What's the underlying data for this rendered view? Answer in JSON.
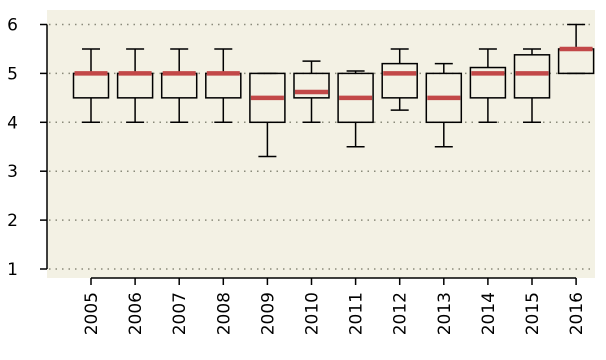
{
  "chart_data": {
    "type": "boxplot",
    "title": "",
    "xlabel": "",
    "ylabel": "",
    "ylim": [
      1,
      6
    ],
    "yticks": [
      1,
      2,
      3,
      4,
      5,
      6
    ],
    "grid": "horizontal dotted",
    "categories": [
      "2005",
      "2006",
      "2007",
      "2008",
      "2009",
      "2010",
      "2011",
      "2012",
      "2013",
      "2014",
      "2015",
      "2016"
    ],
    "boxes": [
      {
        "whisker_low": 4.0,
        "q1": 4.5,
        "median": 5.0,
        "q3": 5.0,
        "whisker_high": 5.5
      },
      {
        "whisker_low": 4.0,
        "q1": 4.5,
        "median": 5.0,
        "q3": 5.0,
        "whisker_high": 5.5
      },
      {
        "whisker_low": 4.0,
        "q1": 4.5,
        "median": 5.0,
        "q3": 5.0,
        "whisker_high": 5.5
      },
      {
        "whisker_low": 4.0,
        "q1": 4.5,
        "median": 5.0,
        "q3": 5.0,
        "whisker_high": 5.5
      },
      {
        "whisker_low": 3.3,
        "q1": 4.0,
        "median": 4.5,
        "q3": 5.0,
        "whisker_high": 5.0
      },
      {
        "whisker_low": 4.0,
        "q1": 4.5,
        "median": 4.62,
        "q3": 5.0,
        "whisker_high": 5.25
      },
      {
        "whisker_low": 3.5,
        "q1": 4.0,
        "median": 4.5,
        "q3": 5.0,
        "whisker_high": 5.05
      },
      {
        "whisker_low": 4.25,
        "q1": 4.5,
        "median": 5.0,
        "q3": 5.2,
        "whisker_high": 5.5
      },
      {
        "whisker_low": 3.5,
        "q1": 4.0,
        "median": 4.5,
        "q3": 5.0,
        "whisker_high": 5.2
      },
      {
        "whisker_low": 4.0,
        "q1": 4.5,
        "median": 5.0,
        "q3": 5.12,
        "whisker_high": 5.5
      },
      {
        "whisker_low": 4.0,
        "q1": 4.5,
        "median": 5.0,
        "q3": 5.38,
        "whisker_high": 5.5
      },
      {
        "whisker_low": 5.0,
        "q1": 5.0,
        "median": 5.5,
        "q3": 5.5,
        "whisker_high": 6.0
      }
    ],
    "colors": {
      "panel_background": "#f3f1e4",
      "median_line": "#c24848",
      "box_stroke": "#000000",
      "grid": "#8a8a7a"
    }
  }
}
